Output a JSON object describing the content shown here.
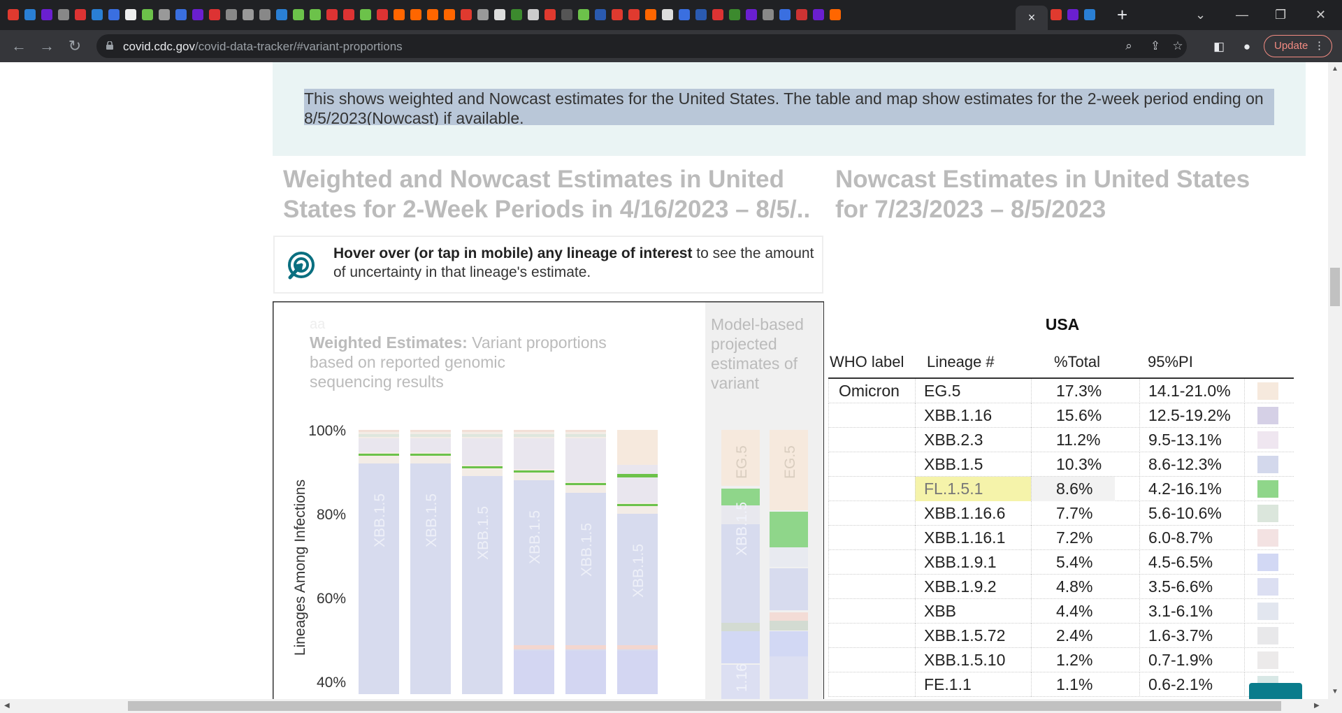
{
  "browser": {
    "tab_close": "×",
    "new_tab": "+",
    "window_controls": [
      "⌄",
      "—",
      "❐",
      "✕"
    ],
    "url_host": "covid.cdc.gov",
    "url_path": "/covid-data-tracker/#variant-proportions",
    "update_label": "Update",
    "menu_dots": "⋮",
    "tab_favicons": [
      "#e03a2f",
      "#2a7fd4",
      "#6a1fd0",
      "#888",
      "#d33",
      "#2a7fd4",
      "#3a6fe0",
      "#eee",
      "#6cc24a",
      "#999",
      "#3a6fe0",
      "#6a1fd0",
      "#d33",
      "#888",
      "#999",
      "#888",
      "#2a7fd4",
      "#6cc24a",
      "#6cc24a",
      "#d33",
      "#d33",
      "#6cc24a",
      "#d33",
      "#f60",
      "#f60",
      "#f60",
      "#f60",
      "#e03a2f",
      "#999",
      "#ddd",
      "#3c8a2e",
      "#ccc",
      "#e03a2f",
      "#555",
      "#6cc24a",
      "#2a5ab0",
      "#e03a2f",
      "#e03a2f",
      "#f60",
      "#ddd",
      "#3a6fe0",
      "#2a5ab0",
      "#d33",
      "#3c8a2e",
      "#6a1fd0",
      "#888",
      "#3a6fe0",
      "#c33",
      "#6a1fd0",
      "#f60"
    ],
    "tabs_right_favicons": [
      "#e03a2f",
      "#6a1fd0",
      "#2a7fd4"
    ]
  },
  "page": {
    "info_text": "This shows weighted and Nowcast estimates for the United States. The table and map show estimates for the 2-week period ending on 8/5/2023(Nowcast) if available.",
    "left_title": "Weighted and Nowcast Estimates in United States for 2-Week Periods in 4/16/2023 – 8/5/..",
    "right_title": "Nowcast Estimates in United States for 7/23/2023 – 8/5/2023",
    "hint_bold": "Hover over (or tap in mobile) any lineage of interest",
    "hint_rest": " to see the amount of uncertainty in that lineage's estimate.",
    "back_to_top_icon": "^"
  },
  "chart": {
    "faint_label": "aa",
    "weighted_bold": "Weighted Estimates:",
    "weighted_rest": " Variant proportions based on reported genomic sequencing results",
    "model_label": "Model-based projected estimates of variant",
    "ylabel": "Lineages Among Infections",
    "yticks": [
      "100%",
      "80%",
      "60%",
      "40%"
    ]
  },
  "chart_data": {
    "type": "bar",
    "subtype": "stacked-100",
    "ylabel": "Lineages Among Infections",
    "ylim": [
      0,
      100
    ],
    "visible_range": [
      37,
      100
    ],
    "weighted_bars": [
      {
        "label": "XBB.1.5",
        "xbb15_top": 92
      },
      {
        "label": "XBB.1.5",
        "xbb15_top": 92
      },
      {
        "label": "XBB.1.5",
        "xbb15_top": 89
      },
      {
        "label": "XBB.1.5",
        "xbb15_top": 88
      },
      {
        "label": "XBB.1.5",
        "xbb15_top": 85
      },
      {
        "label": "XBB.1.5",
        "xbb15_top": 80
      }
    ],
    "nowcast_bars": [
      {
        "label_top": "EG.5",
        "label_mid": "XBB.1.5",
        "label_bot": "1.16"
      },
      {
        "label_top": "EG.5"
      }
    ]
  },
  "table": {
    "title": "USA",
    "headers": [
      "WHO label",
      "Lineage #",
      "%Total",
      "95%PI"
    ],
    "rows": [
      {
        "who": "Omicron",
        "lineage": "EG.5",
        "pct": "17.3%",
        "pi": "14.1-21.0%",
        "color": "#f6e9dd"
      },
      {
        "who": "",
        "lineage": "XBB.1.16",
        "pct": "15.6%",
        "pi": "12.5-19.2%",
        "color": "#d5d0e6"
      },
      {
        "who": "",
        "lineage": "XBB.2.3",
        "pct": "11.2%",
        "pi": "9.5-13.1%",
        "color": "#efe6f0"
      },
      {
        "who": "",
        "lineage": "XBB.1.5",
        "pct": "10.3%",
        "pi": "8.6-12.3%",
        "color": "#d3d8ec"
      },
      {
        "who": "",
        "lineage": "FL.1.5.1",
        "pct": "8.6%",
        "pi": "4.2-16.1%",
        "color": "#8fd68a",
        "highlight": true
      },
      {
        "who": "",
        "lineage": "XBB.1.16.6",
        "pct": "7.7%",
        "pi": "5.6-10.6%",
        "color": "#dbe6dc"
      },
      {
        "who": "",
        "lineage": "XBB.1.16.1",
        "pct": "7.2%",
        "pi": "6.0-8.7%",
        "color": "#f3e2e2"
      },
      {
        "who": "",
        "lineage": "XBB.1.9.1",
        "pct": "5.4%",
        "pi": "4.5-6.5%",
        "color": "#d2d8f4"
      },
      {
        "who": "",
        "lineage": "XBB.1.9.2",
        "pct": "4.8%",
        "pi": "3.5-6.6%",
        "color": "#dcdff2"
      },
      {
        "who": "",
        "lineage": "XBB",
        "pct": "4.4%",
        "pi": "3.1-6.1%",
        "color": "#e2e6ef"
      },
      {
        "who": "",
        "lineage": "XBB.1.5.72",
        "pct": "2.4%",
        "pi": "1.6-3.7%",
        "color": "#e8e8ea"
      },
      {
        "who": "",
        "lineage": "XBB.1.5.10",
        "pct": "1.2%",
        "pi": "0.7-1.9%",
        "color": "#eceaea"
      },
      {
        "who": "",
        "lineage": "FE.1.1",
        "pct": "1.1%",
        "pi": "0.6-2.1%",
        "color": "#d8e8e6"
      }
    ]
  }
}
